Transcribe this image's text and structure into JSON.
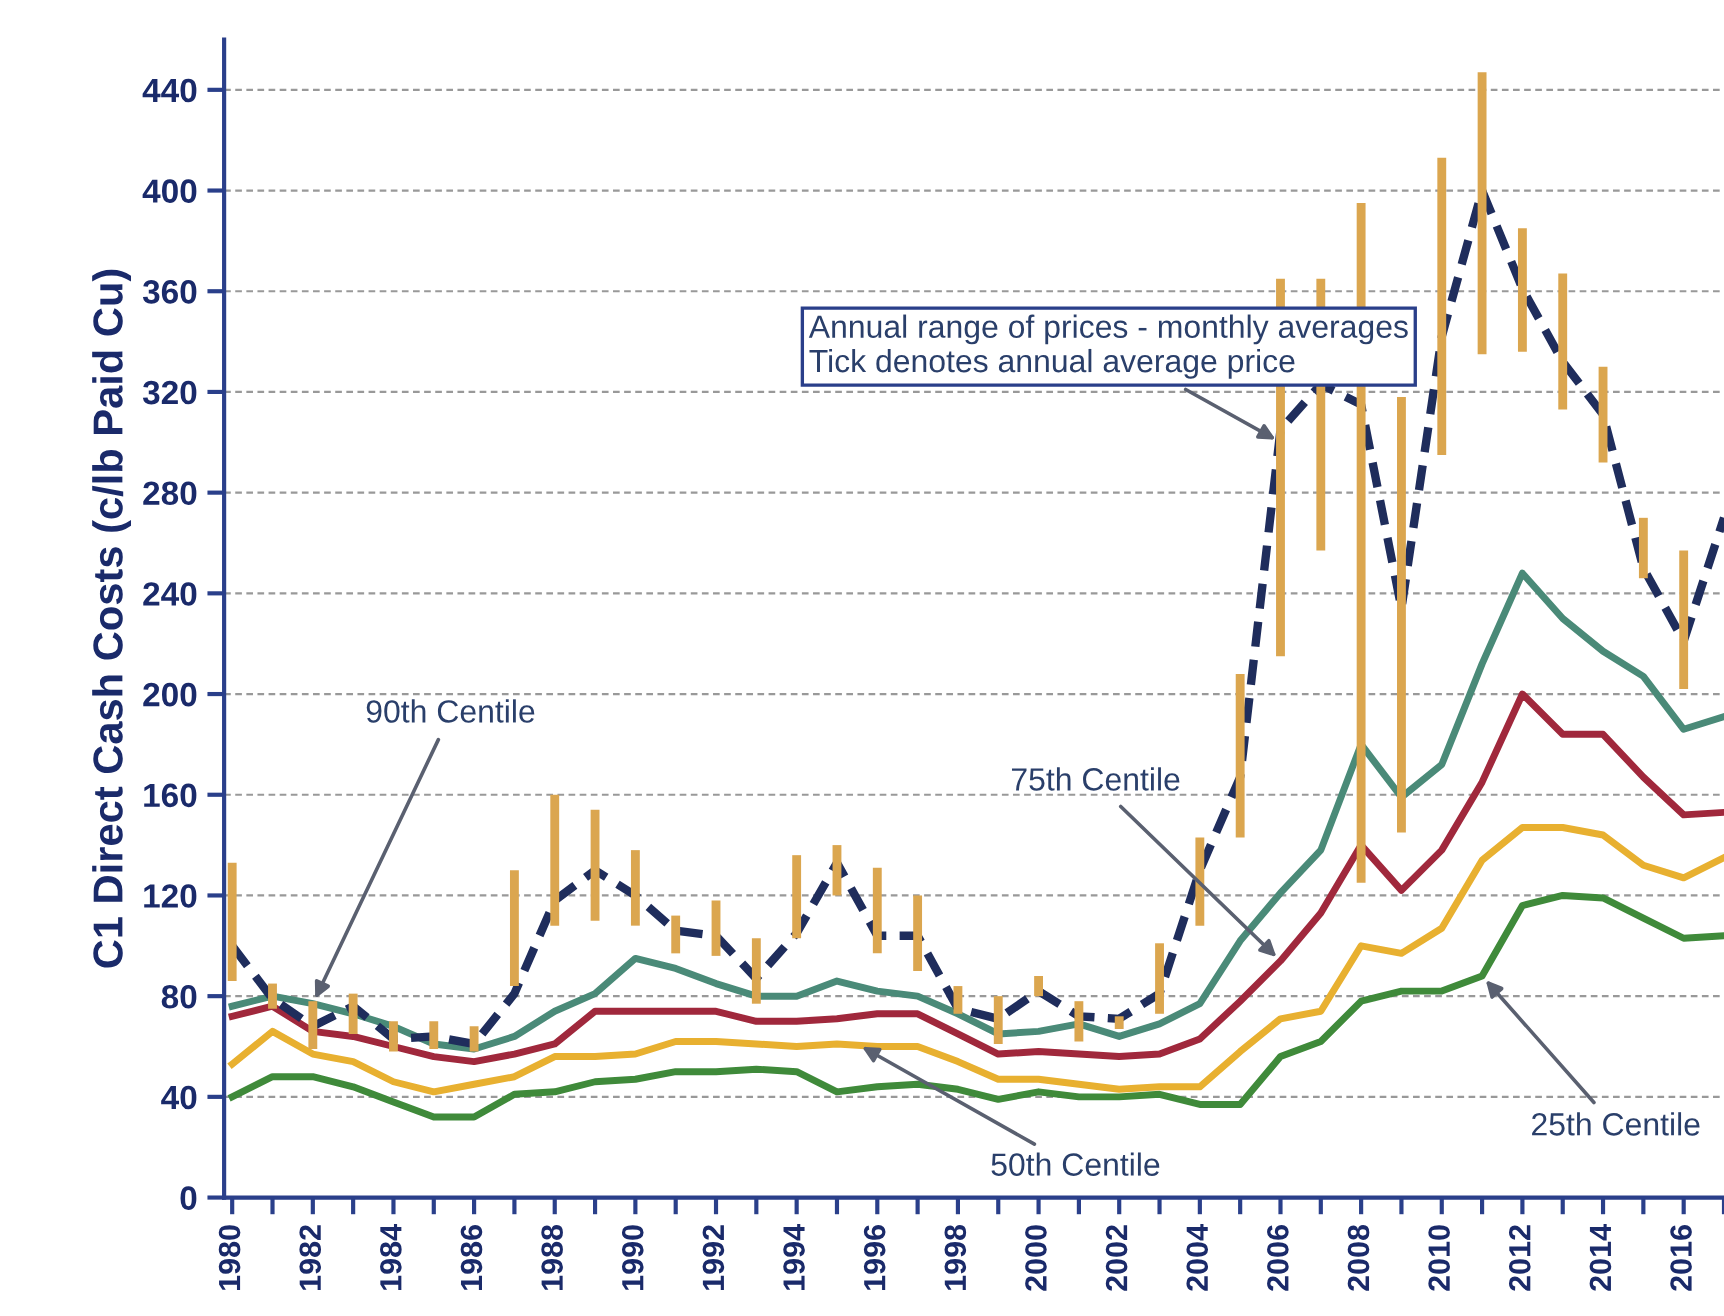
{
  "chart_data": {
    "type": "line",
    "ylabel": "C1 Direct Cash Costs (c/lb Paid Cu)",
    "x": [
      1980,
      1981,
      1982,
      1983,
      1984,
      1985,
      1986,
      1987,
      1988,
      1989,
      1990,
      1991,
      1992,
      1993,
      1994,
      1995,
      1996,
      1997,
      1998,
      1999,
      2000,
      2001,
      2002,
      2003,
      2004,
      2005,
      2006,
      2007,
      2008,
      2009,
      2010,
      2011,
      2012,
      2013,
      2014,
      2015,
      2016,
      2017
    ],
    "xlim": [
      1979.8,
      2017
    ],
    "xticks": [
      {
        "value": 1980,
        "label": "1980"
      },
      {
        "value": 1981,
        "label": null
      },
      {
        "value": 1982,
        "label": "1982"
      },
      {
        "value": 1983,
        "label": null
      },
      {
        "value": 1984,
        "label": "1984"
      },
      {
        "value": 1985,
        "label": null
      },
      {
        "value": 1986,
        "label": "1986"
      },
      {
        "value": 1987,
        "label": null
      },
      {
        "value": 1988,
        "label": "1988"
      },
      {
        "value": 1989,
        "label": null
      },
      {
        "value": 1990,
        "label": "1990"
      },
      {
        "value": 1991,
        "label": null
      },
      {
        "value": 1992,
        "label": "1992"
      },
      {
        "value": 1993,
        "label": null
      },
      {
        "value": 1994,
        "label": "1994"
      },
      {
        "value": 1995,
        "label": null
      },
      {
        "value": 1996,
        "label": "1996"
      },
      {
        "value": 1997,
        "label": null
      },
      {
        "value": 1998,
        "label": "1998"
      },
      {
        "value": 1999,
        "label": null
      },
      {
        "value": 2000,
        "label": "2000"
      },
      {
        "value": 2001,
        "label": null
      },
      {
        "value": 2002,
        "label": "2002"
      },
      {
        "value": 2003,
        "label": null
      },
      {
        "value": 2004,
        "label": "2004"
      },
      {
        "value": 2005,
        "label": null
      },
      {
        "value": 2006,
        "label": "2006"
      },
      {
        "value": 2007,
        "label": null
      },
      {
        "value": 2008,
        "label": "2008"
      },
      {
        "value": 2009,
        "label": null
      },
      {
        "value": 2010,
        "label": "2010"
      },
      {
        "value": 2011,
        "label": null
      },
      {
        "value": 2012,
        "label": "2012"
      },
      {
        "value": 2013,
        "label": null
      },
      {
        "value": 2014,
        "label": "2014"
      },
      {
        "value": 2015,
        "label": null
      },
      {
        "value": 2016,
        "label": "2016"
      },
      {
        "value": 2017,
        "label": null
      }
    ],
    "ylim": [
      0,
      460
    ],
    "yticks": [
      0,
      40,
      80,
      120,
      160,
      200,
      240,
      280,
      320,
      360,
      400,
      440
    ],
    "grid": "y",
    "legend": false,
    "series": [
      {
        "type": "bar",
        "color": "#dba64f",
        "x": [
          1980,
          1981,
          1982,
          1983,
          1984,
          1985,
          1986,
          1987,
          1988,
          1989,
          1990,
          1991,
          1992,
          1993,
          1994,
          1995,
          1996,
          1997,
          1998,
          1999,
          2000,
          2001,
          2002,
          2003,
          2004,
          2005,
          2006,
          2007,
          2008,
          2009,
          2010,
          2011,
          2012,
          2013,
          2014,
          2015,
          2016
        ],
        "base": [
          86,
          75,
          59,
          65,
          58,
          59,
          58,
          84,
          108,
          110,
          108,
          97,
          96,
          77,
          103,
          120,
          97,
          90,
          73,
          61,
          80,
          62,
          67,
          73,
          108,
          143,
          215,
          257,
          125,
          145,
          295,
          335,
          336,
          313,
          292,
          246,
          202
        ],
        "values": [
          47,
          10,
          19,
          16,
          12,
          11,
          10,
          46,
          52,
          44,
          30,
          15,
          22,
          26,
          33,
          20,
          34,
          30,
          11,
          19,
          8,
          16,
          5,
          28,
          35,
          65,
          150,
          108,
          270,
          173,
          118,
          112,
          49,
          54,
          38,
          24,
          55
        ]
      },
      {
        "color": "#3f8a3a",
        "values": [
          40,
          48,
          48,
          44,
          38,
          32,
          32,
          41,
          42,
          46,
          47,
          50,
          50,
          51,
          50,
          42,
          44,
          45,
          43,
          39,
          42,
          40,
          40,
          41,
          37,
          37,
          56,
          62,
          78,
          82,
          82,
          88,
          116,
          120,
          119,
          111,
          103,
          104
        ]
      },
      {
        "color": "#e8b030",
        "values": [
          53,
          66,
          57,
          54,
          46,
          42,
          45,
          48,
          56,
          56,
          57,
          62,
          62,
          61,
          60,
          61,
          60,
          60,
          54,
          47,
          47,
          45,
          43,
          44,
          44,
          58,
          71,
          74,
          100,
          97,
          107,
          134,
          147,
          147,
          144,
          132,
          127,
          135
        ]
      },
      {
        "color": "#a0283c",
        "values": [
          72,
          76,
          66,
          64,
          60,
          56,
          54,
          57,
          61,
          74,
          74,
          74,
          74,
          70,
          70,
          71,
          73,
          73,
          65,
          57,
          58,
          57,
          56,
          57,
          63,
          78,
          94,
          113,
          140,
          122,
          138,
          165,
          200,
          184,
          184,
          167,
          152,
          153
        ]
      },
      {
        "color": "#4a8a78",
        "values": [
          76,
          80,
          77,
          73,
          68,
          61,
          59,
          64,
          74,
          81,
          95,
          91,
          85,
          80,
          80,
          86,
          82,
          80,
          73,
          65,
          66,
          69,
          64,
          69,
          77,
          102,
          121,
          138,
          180,
          159,
          172,
          212,
          248,
          230,
          217,
          207,
          186,
          191
        ]
      },
      {
        "color": "#1f2d5c",
        "line_style": "dashed",
        "values": [
          100,
          79,
          68,
          76,
          63,
          64,
          61,
          81,
          118,
          130,
          120,
          106,
          104,
          87,
          105,
          133,
          104,
          104,
          75,
          71,
          82,
          72,
          71,
          81,
          130,
          167,
          305,
          323,
          315,
          234,
          342,
          400,
          361,
          332,
          311,
          250,
          221,
          270
        ]
      }
    ],
    "annotations": [
      {
        "text": "90th Centile",
        "x": 1982,
        "y": 77
      },
      {
        "text": "Annual range of prices - monthly averages\nTick denotes annual average price",
        "x": 2006,
        "y": 300
      },
      {
        "text": "75th Centile",
        "x": 2006,
        "y": 94
      },
      {
        "text": "50th Centile",
        "x": 1995.5,
        "y": 61
      },
      {
        "text": "25th Centile",
        "x": 2011,
        "y": 88
      }
    ]
  }
}
